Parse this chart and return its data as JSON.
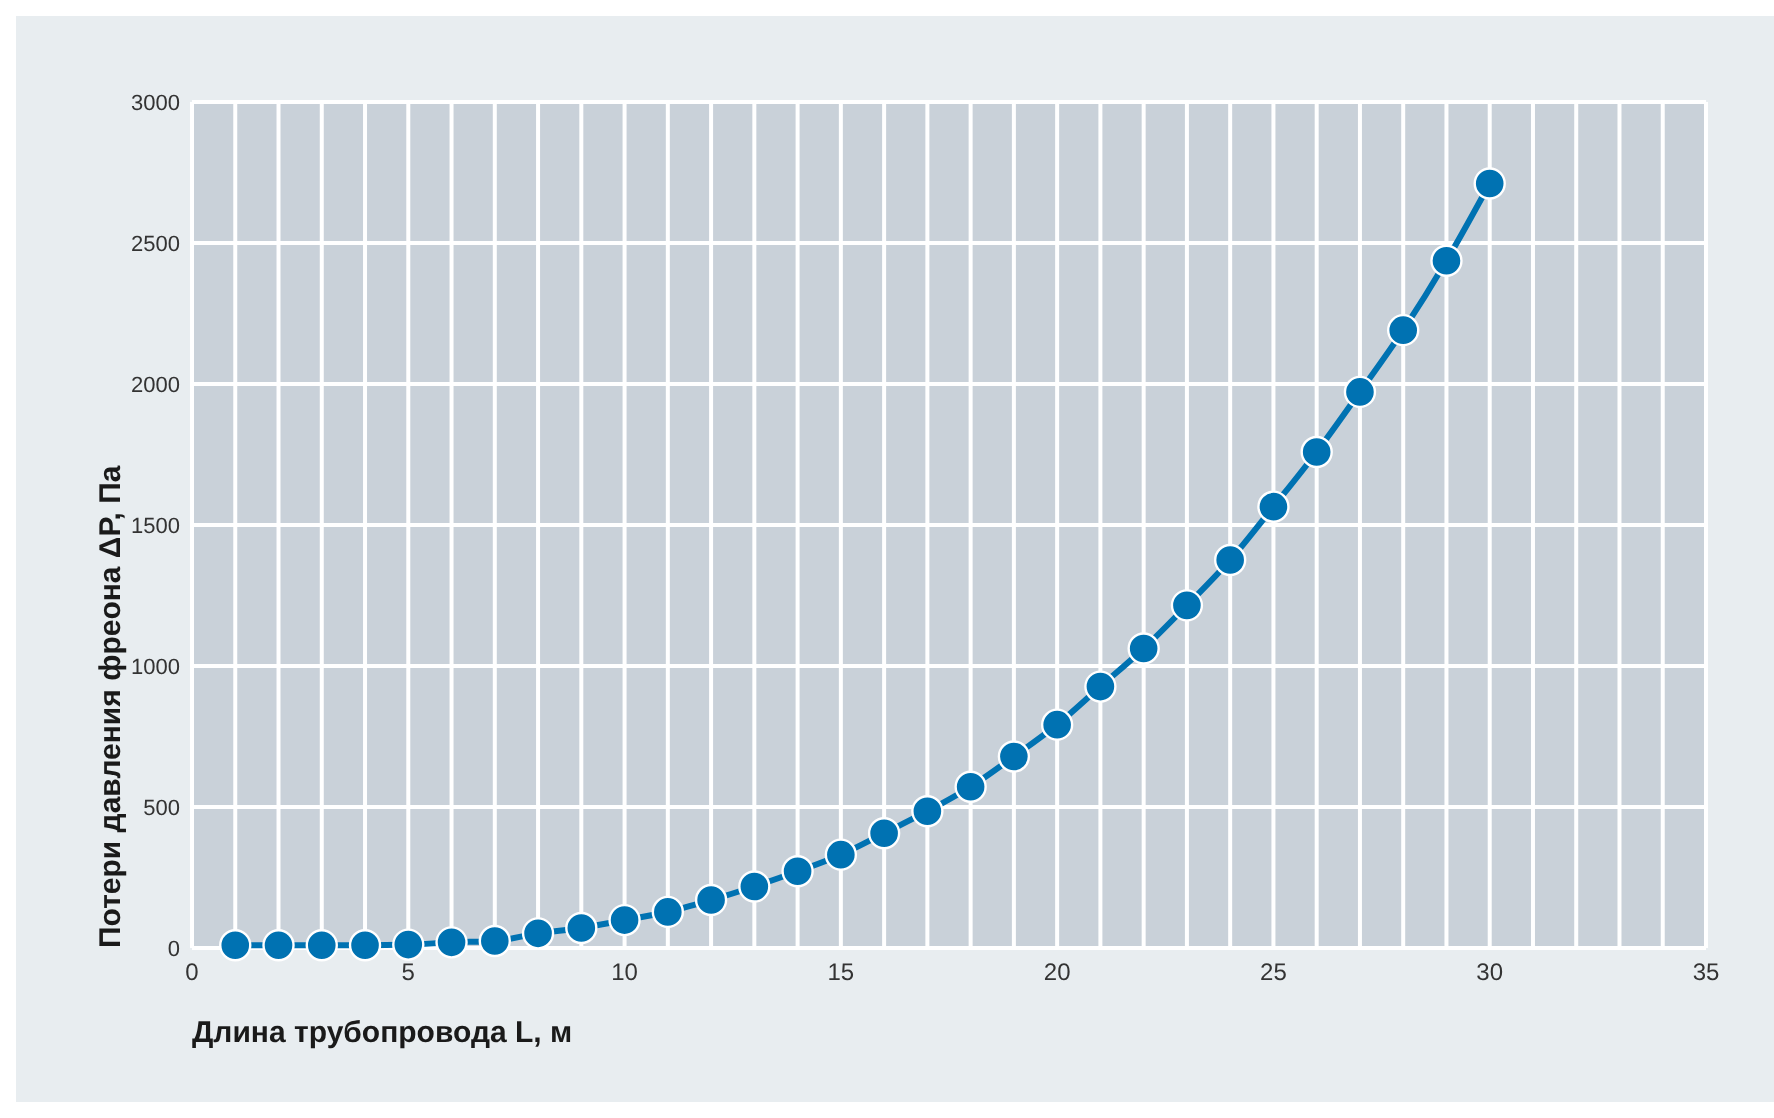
{
  "chart_data": {
    "type": "line",
    "xlabel": "Длина трубопровода L, м",
    "ylabel": "Потери давления фреона ΔP, Па",
    "x": [
      1,
      2,
      3,
      4,
      5,
      6,
      7,
      8,
      9,
      10,
      11,
      12,
      13,
      14,
      15,
      16,
      17,
      18,
      19,
      20,
      21,
      22,
      23,
      24,
      25,
      26,
      27,
      28,
      29,
      30
    ],
    "series": [
      {
        "color": "#0072b2",
        "values": [
          10,
          10,
          10,
          10,
          12,
          20,
          25,
          52,
          71,
          99,
          128,
          170,
          218,
          272,
          331,
          407,
          485,
          572,
          679,
          792,
          927,
          1062,
          1215,
          1376,
          1565,
          1759,
          1972,
          2191,
          2437,
          2711
        ]
      }
    ],
    "xlim": [
      0,
      35
    ],
    "xticks": [
      0,
      {
        "value": 1,
        "label": null
      },
      {
        "value": 2,
        "label": null
      },
      {
        "value": 3,
        "label": null
      },
      {
        "value": 4,
        "label": null
      },
      5,
      {
        "value": 6,
        "label": null
      },
      {
        "value": 7,
        "label": null
      },
      {
        "value": 8,
        "label": null
      },
      {
        "value": 9,
        "label": null
      },
      10,
      {
        "value": 11,
        "label": null
      },
      {
        "value": 12,
        "label": null
      },
      {
        "value": 13,
        "label": null
      },
      {
        "value": 14,
        "label": null
      },
      15,
      {
        "value": 16,
        "label": null
      },
      {
        "value": 17,
        "label": null
      },
      {
        "value": 18,
        "label": null
      },
      {
        "value": 19,
        "label": null
      },
      20,
      {
        "value": 21,
        "label": null
      },
      {
        "value": 22,
        "label": null
      },
      {
        "value": 23,
        "label": null
      },
      {
        "value": 24,
        "label": null
      },
      25,
      {
        "value": 26,
        "label": null
      },
      {
        "value": 27,
        "label": null
      },
      {
        "value": 28,
        "label": null
      },
      {
        "value": 29,
        "label": null
      },
      30,
      {
        "value": 31,
        "label": null
      },
      {
        "value": 32,
        "label": null
      },
      {
        "value": 33,
        "label": null
      },
      {
        "value": 34,
        "label": null
      },
      35
    ],
    "ylim": [
      0,
      3000
    ],
    "yticks": [
      0,
      500,
      1000,
      1500,
      2000,
      2500,
      3000
    ],
    "grid": true,
    "marker": "circle",
    "line_style": "solid"
  }
}
